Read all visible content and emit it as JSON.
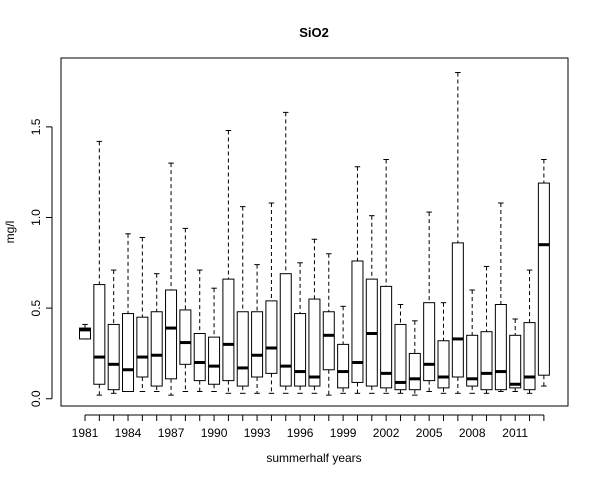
{
  "chart_data": {
    "type": "boxplot",
    "title": "SiO2",
    "xlabel": "summerhalf years",
    "ylabel": "mg/l",
    "ylim": [
      -0.04,
      1.88
    ],
    "y_ticks": [
      "0.0",
      "0.5",
      "1.0",
      "1.5"
    ],
    "y_tick_values": [
      0,
      0.5,
      1.0,
      1.5
    ],
    "years": [
      1981,
      1982,
      1983,
      1984,
      1985,
      1986,
      1987,
      1988,
      1989,
      1990,
      1991,
      1992,
      1993,
      1994,
      1995,
      1996,
      1997,
      1998,
      1999,
      2000,
      2001,
      2002,
      2003,
      2004,
      2005,
      2006,
      2007,
      2008,
      2009,
      2010,
      2011,
      2012,
      2013
    ],
    "x_tick_labels": [
      "1981",
      "1984",
      "1987",
      "1990",
      "1993",
      "1996",
      "1999",
      "2002",
      "2005",
      "2008",
      "2011"
    ],
    "boxes": [
      {
        "min": 0.33,
        "q1": 0.33,
        "median": 0.38,
        "q3": 0.39,
        "max": 0.41
      },
      {
        "min": 0.02,
        "q1": 0.08,
        "median": 0.23,
        "q3": 0.63,
        "max": 1.42
      },
      {
        "min": 0.03,
        "q1": 0.05,
        "median": 0.19,
        "q3": 0.41,
        "max": 0.71
      },
      {
        "min": 0.04,
        "q1": 0.04,
        "median": 0.16,
        "q3": 0.47,
        "max": 0.91
      },
      {
        "min": 0.04,
        "q1": 0.12,
        "median": 0.23,
        "q3": 0.45,
        "max": 0.89
      },
      {
        "min": 0.04,
        "q1": 0.07,
        "median": 0.24,
        "q3": 0.48,
        "max": 0.69
      },
      {
        "min": 0.02,
        "q1": 0.11,
        "median": 0.39,
        "q3": 0.6,
        "max": 1.3
      },
      {
        "min": 0.04,
        "q1": 0.19,
        "median": 0.31,
        "q3": 0.49,
        "max": 0.94
      },
      {
        "min": 0.04,
        "q1": 0.1,
        "median": 0.2,
        "q3": 0.36,
        "max": 0.71
      },
      {
        "min": 0.04,
        "q1": 0.08,
        "median": 0.18,
        "q3": 0.34,
        "max": 0.61
      },
      {
        "min": 0.03,
        "q1": 0.1,
        "median": 0.3,
        "q3": 0.66,
        "max": 1.48
      },
      {
        "min": 0.03,
        "q1": 0.07,
        "median": 0.17,
        "q3": 0.48,
        "max": 1.06
      },
      {
        "min": 0.03,
        "q1": 0.12,
        "median": 0.24,
        "q3": 0.48,
        "max": 0.74
      },
      {
        "min": 0.03,
        "q1": 0.14,
        "median": 0.28,
        "q3": 0.54,
        "max": 1.08
      },
      {
        "min": 0.03,
        "q1": 0.07,
        "median": 0.18,
        "q3": 0.69,
        "max": 1.58
      },
      {
        "min": 0.03,
        "q1": 0.07,
        "median": 0.15,
        "q3": 0.47,
        "max": 0.75
      },
      {
        "min": 0.03,
        "q1": 0.07,
        "median": 0.12,
        "q3": 0.55,
        "max": 0.88
      },
      {
        "min": 0.02,
        "q1": 0.16,
        "median": 0.35,
        "q3": 0.48,
        "max": 0.8
      },
      {
        "min": 0.03,
        "q1": 0.06,
        "median": 0.15,
        "q3": 0.3,
        "max": 0.51
      },
      {
        "min": 0.03,
        "q1": 0.09,
        "median": 0.2,
        "q3": 0.76,
        "max": 1.28
      },
      {
        "min": 0.03,
        "q1": 0.07,
        "median": 0.36,
        "q3": 0.66,
        "max": 1.01
      },
      {
        "min": 0.03,
        "q1": 0.06,
        "median": 0.14,
        "q3": 0.62,
        "max": 1.32
      },
      {
        "min": 0.03,
        "q1": 0.05,
        "median": 0.09,
        "q3": 0.41,
        "max": 0.52
      },
      {
        "min": 0.02,
        "q1": 0.05,
        "median": 0.11,
        "q3": 0.25,
        "max": 0.43
      },
      {
        "min": 0.04,
        "q1": 0.1,
        "median": 0.19,
        "q3": 0.53,
        "max": 1.03
      },
      {
        "min": 0.03,
        "q1": 0.06,
        "median": 0.12,
        "q3": 0.32,
        "max": 0.53
      },
      {
        "min": 0.03,
        "q1": 0.12,
        "median": 0.33,
        "q3": 0.86,
        "max": 1.8
      },
      {
        "min": 0.03,
        "q1": 0.07,
        "median": 0.11,
        "q3": 0.35,
        "max": 0.6
      },
      {
        "min": 0.03,
        "q1": 0.05,
        "median": 0.14,
        "q3": 0.37,
        "max": 0.73
      },
      {
        "min": 0.04,
        "q1": 0.05,
        "median": 0.15,
        "q3": 0.52,
        "max": 1.08
      },
      {
        "min": 0.04,
        "q1": 0.06,
        "median": 0.08,
        "q3": 0.35,
        "max": 0.44
      },
      {
        "min": 0.03,
        "q1": 0.05,
        "median": 0.12,
        "q3": 0.42,
        "max": 0.71
      },
      {
        "min": 0.07,
        "q1": 0.13,
        "median": 0.85,
        "q3": 1.19,
        "max": 1.32
      }
    ],
    "grid": false,
    "legend": "none"
  }
}
